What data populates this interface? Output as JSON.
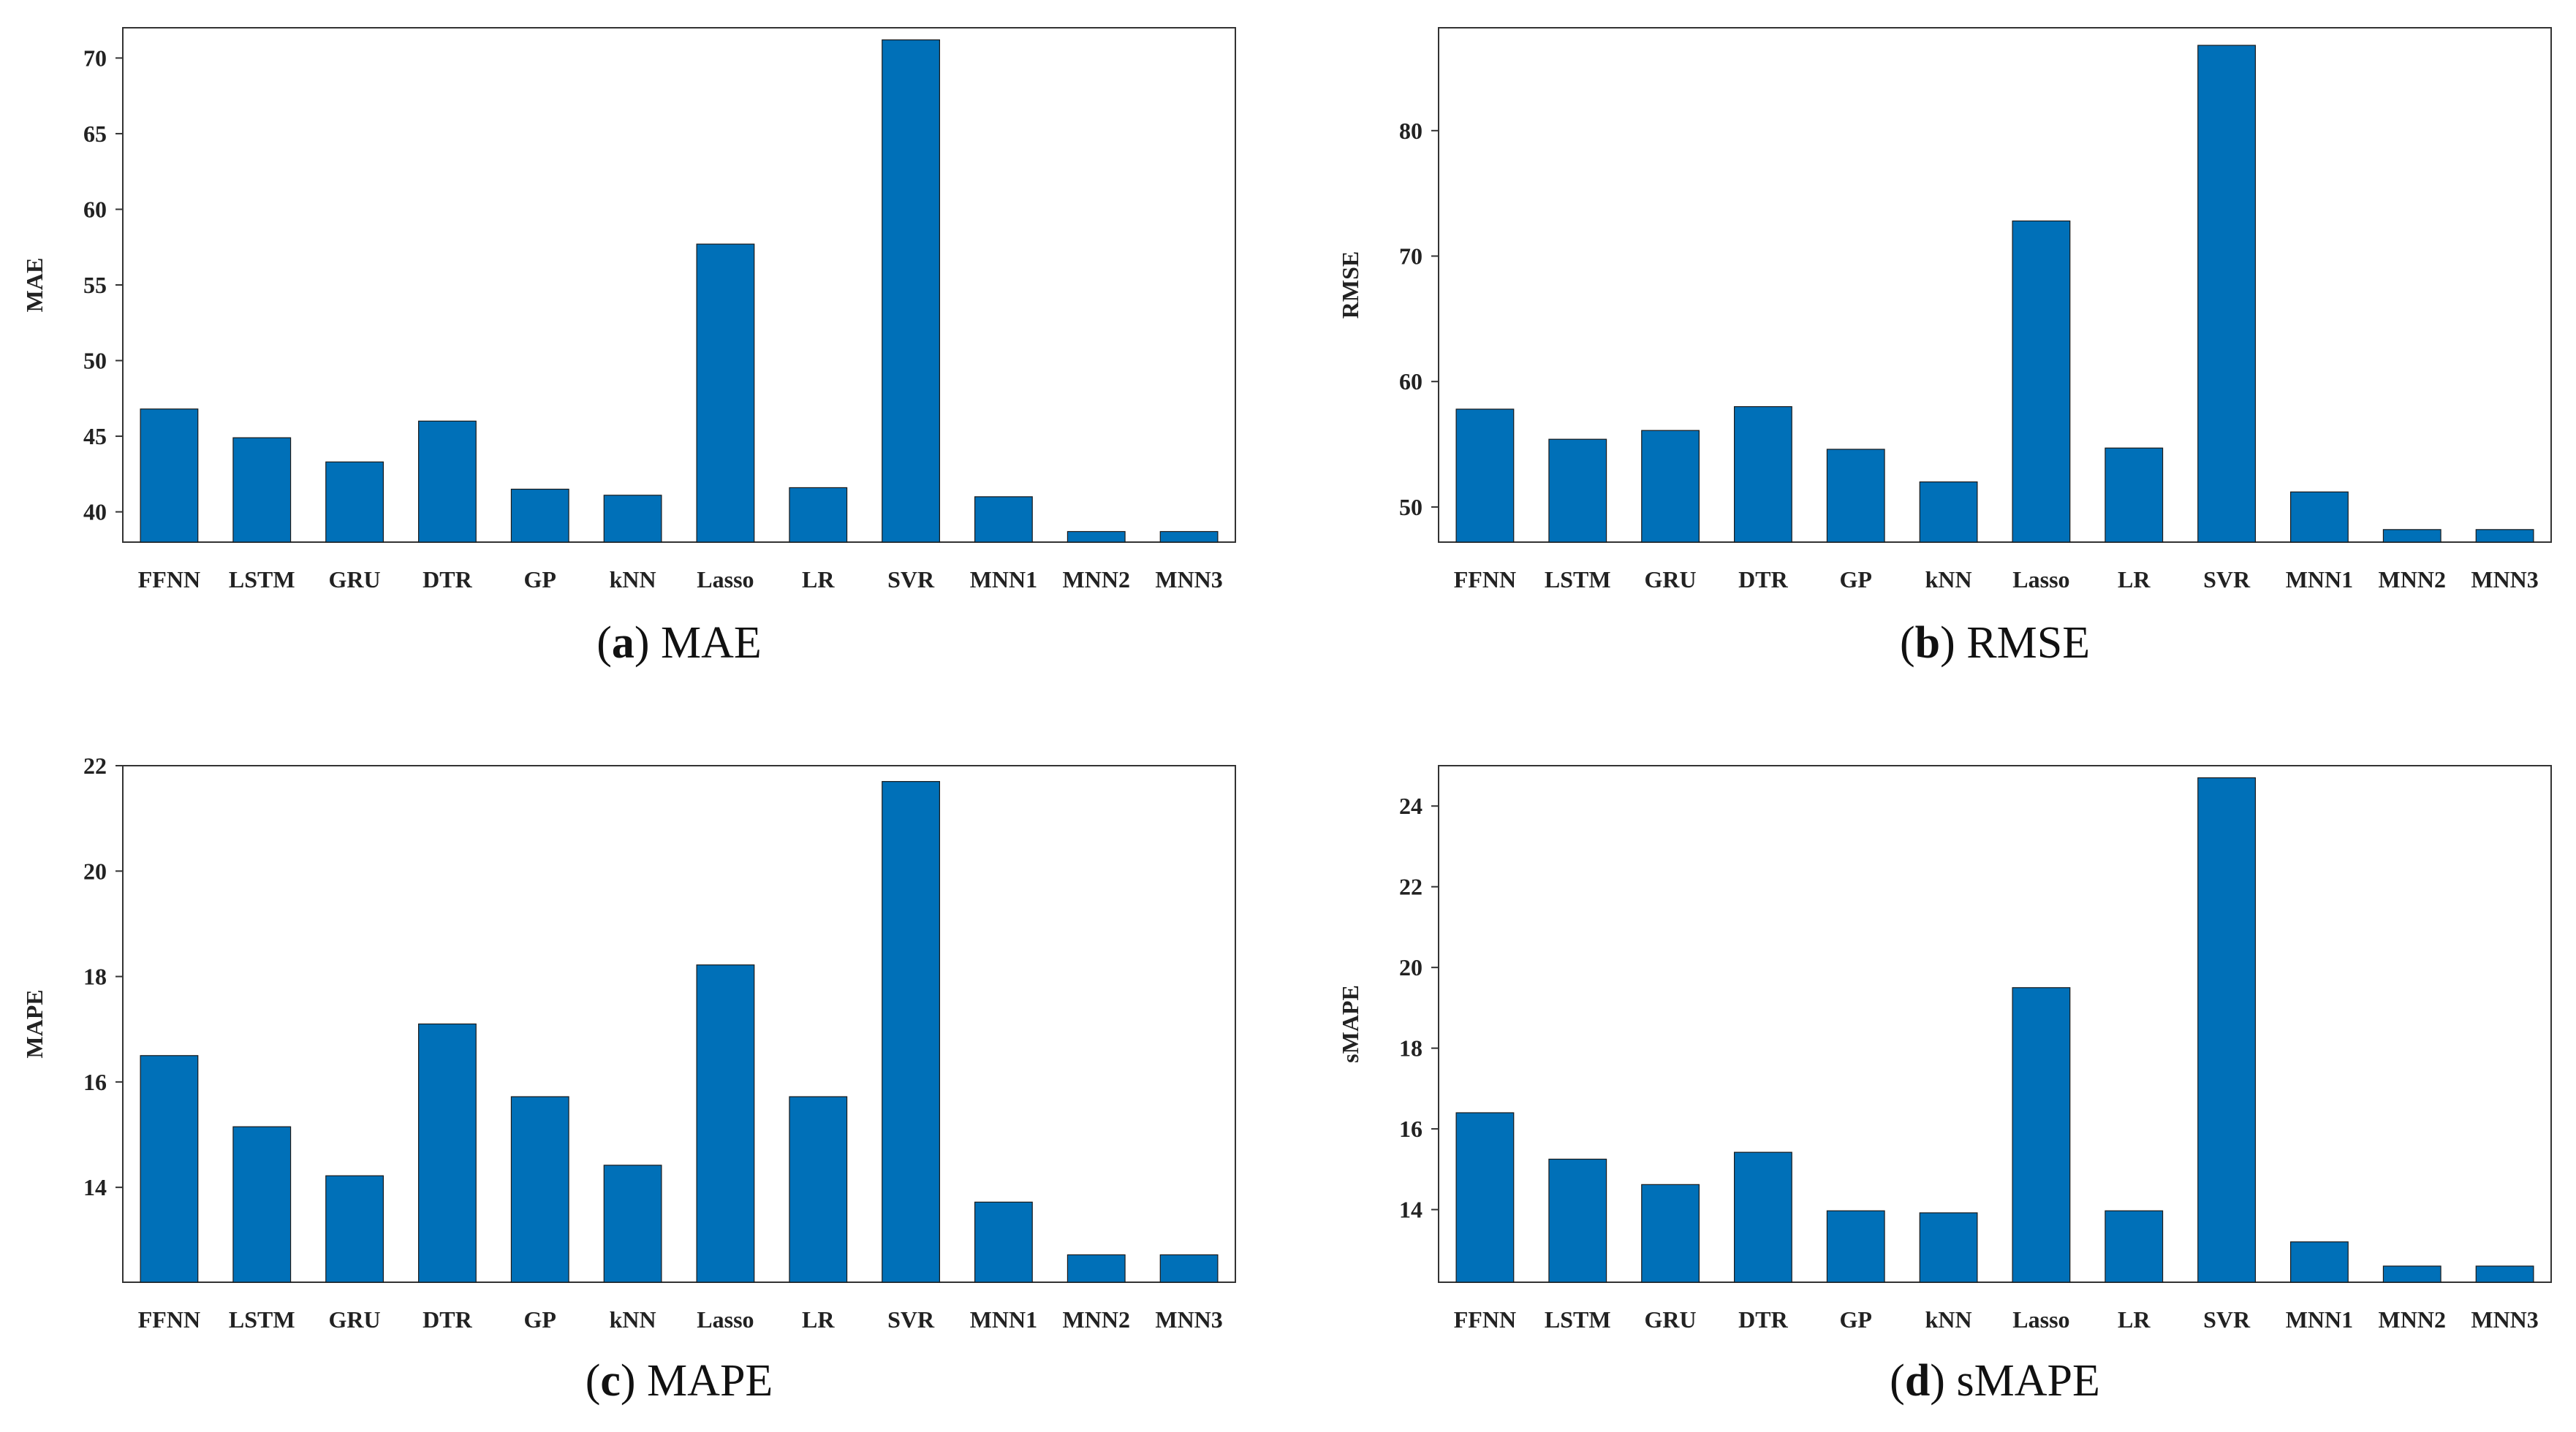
{
  "colors": {
    "bar": "#0070b8",
    "axis": "#333333",
    "text": "#222222"
  },
  "chart_data": [
    {
      "type": "bar",
      "panel": "a",
      "caption": "MAE",
      "ylabel": "MAE",
      "categories": [
        "FFNN",
        "LSTM",
        "GRU",
        "DTR",
        "GP",
        "kNN",
        "Lasso",
        "LR",
        "SVR",
        "MNN1",
        "MNN2",
        "MNN3"
      ],
      "values": [
        46.8,
        44.9,
        43.3,
        46.0,
        41.5,
        41.1,
        57.7,
        41.6,
        71.2,
        41.0,
        38.7,
        38.7
      ],
      "ylim": [
        38.0,
        72.0
      ],
      "yticks": [
        40,
        45,
        50,
        55,
        60,
        65,
        70
      ],
      "grid": false
    },
    {
      "type": "bar",
      "panel": "b",
      "caption": "RMSE",
      "ylabel": "RMSE",
      "categories": [
        "FFNN",
        "LSTM",
        "GRU",
        "DTR",
        "GP",
        "kNN",
        "Lasso",
        "LR",
        "SVR",
        "MNN1",
        "MNN2",
        "MNN3"
      ],
      "values": [
        57.8,
        55.4,
        56.1,
        58.0,
        54.6,
        52.0,
        72.8,
        54.7,
        86.8,
        51.2,
        48.2,
        48.2
      ],
      "ylim": [
        47.2,
        88.2
      ],
      "yticks": [
        50,
        60,
        70,
        80
      ],
      "grid": false
    },
    {
      "type": "bar",
      "panel": "c",
      "caption": "MAPE",
      "ylabel": "MAPE",
      "categories": [
        "FFNN",
        "LSTM",
        "GRU",
        "DTR",
        "GP",
        "kNN",
        "Lasso",
        "LR",
        "SVR",
        "MNN1",
        "MNN2",
        "MNN3"
      ],
      "values": [
        16.5,
        15.15,
        14.22,
        17.1,
        15.72,
        14.42,
        18.22,
        15.72,
        21.7,
        13.72,
        12.72,
        12.72
      ],
      "ylim": [
        12.2,
        22.0
      ],
      "yticks": [
        14,
        16,
        18,
        20,
        22
      ],
      "grid": false
    },
    {
      "type": "bar",
      "panel": "d",
      "caption": "sMAPE",
      "ylabel": "sMAPE",
      "categories": [
        "FFNN",
        "LSTM",
        "GRU",
        "DTR",
        "GP",
        "kNN",
        "Lasso",
        "LR",
        "SVR",
        "MNN1",
        "MNN2",
        "MNN3"
      ],
      "values": [
        16.4,
        15.25,
        14.62,
        15.42,
        13.97,
        13.92,
        19.5,
        13.97,
        24.7,
        13.2,
        12.6,
        12.6
      ],
      "ylim": [
        12.2,
        25.0
      ],
      "yticks": [
        14,
        16,
        18,
        20,
        22,
        24
      ],
      "grid": false
    }
  ]
}
